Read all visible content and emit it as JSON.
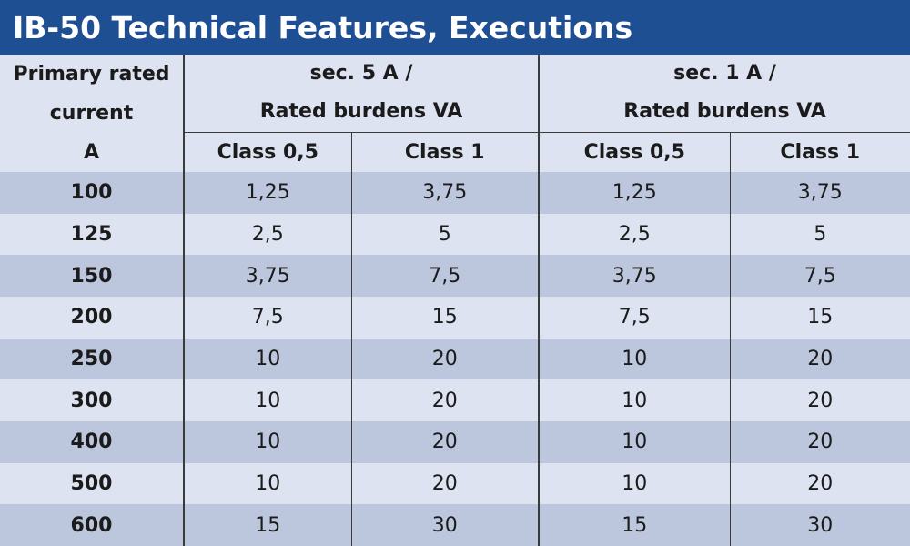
{
  "title": "IB-50 Technical Features, Executions",
  "header": {
    "primary_line1": "Primary rated",
    "primary_line2": "current",
    "primary_line3": "A",
    "group1_line1": "sec. 5 A /",
    "group1_line2": "Rated burdens VA",
    "group2_line1": "sec. 1 A /",
    "group2_line2": "Rated burdens VA",
    "g1_class05": "Class 0,5",
    "g1_class1": "Class 1",
    "g2_class05": "Class 0,5",
    "g2_class1": "Class 1"
  },
  "rows": [
    [
      "100",
      "1,25",
      "3,75",
      "1,25",
      "3,75"
    ],
    [
      "125",
      "2,5",
      "5",
      "2,5",
      "5"
    ],
    [
      "150",
      "3,75",
      "7,5",
      "3,75",
      "7,5"
    ],
    [
      "200",
      "7,5",
      "15",
      "7,5",
      "15"
    ],
    [
      "250",
      "10",
      "20",
      "10",
      "20"
    ],
    [
      "300",
      "10",
      "20",
      "10",
      "20"
    ],
    [
      "400",
      "10",
      "20",
      "10",
      "20"
    ],
    [
      "500",
      "10",
      "20",
      "10",
      "20"
    ],
    [
      "600",
      "15",
      "30",
      "15",
      "30"
    ]
  ],
  "colors": {
    "title_background": "#1f4f93",
    "row_dark": "#bcc7de",
    "row_light": "#dde3f1"
  }
}
